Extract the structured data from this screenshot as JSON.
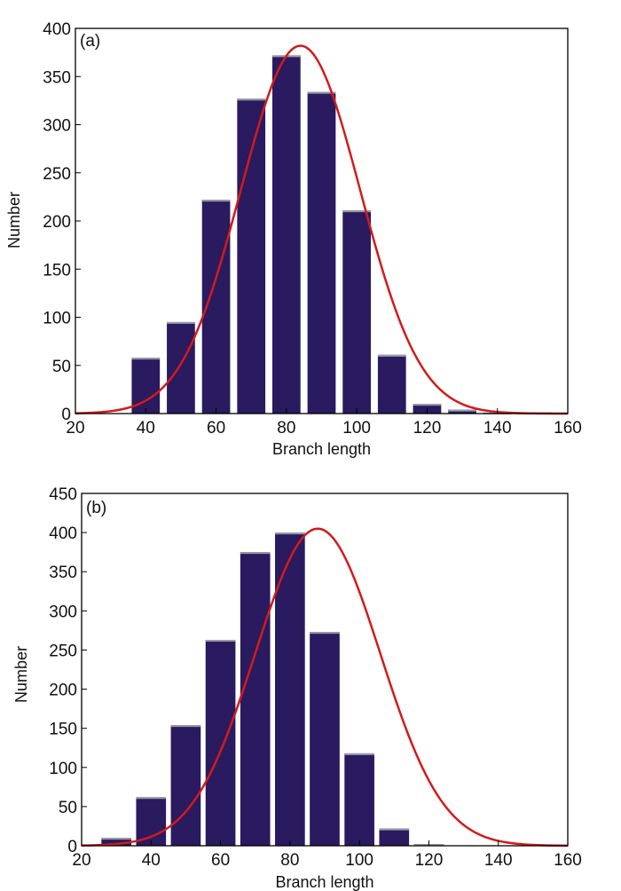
{
  "colors": {
    "bar": "#2a1a60",
    "fit": "#d41a1a",
    "axis": "#000000"
  },
  "chart_data": [
    {
      "type": "bar",
      "panel_label": "(a)",
      "xlabel": "Branch length",
      "ylabel": "Number",
      "xlim": [
        20,
        160
      ],
      "ylim": [
        0,
        400
      ],
      "x_ticks": [
        "20",
        "40",
        "60",
        "80",
        "100",
        "120",
        "140",
        "160"
      ],
      "y_ticks": [
        "0",
        "50",
        "100",
        "150",
        "200",
        "250",
        "300",
        "350",
        "400"
      ],
      "bar_width": 8,
      "x": [
        40,
        50,
        60,
        70,
        80,
        90,
        100,
        110,
        120,
        130,
        140
      ],
      "values": [
        58,
        95,
        222,
        327,
        372,
        334,
        211,
        61,
        10,
        4,
        1
      ],
      "fit_curve": {
        "type": "gaussian",
        "mean": 84,
        "sd": 17,
        "peak": 382
      },
      "grid": false,
      "legend": "none"
    },
    {
      "type": "bar",
      "panel_label": "(b)",
      "xlabel": "Branch length",
      "ylabel": "Number",
      "xlim": [
        20,
        160
      ],
      "ylim": [
        0,
        450
      ],
      "x_ticks": [
        "20",
        "40",
        "60",
        "80",
        "100",
        "120",
        "140",
        "160"
      ],
      "y_ticks": [
        "0",
        "50",
        "100",
        "150",
        "200",
        "250",
        "300",
        "350",
        "400",
        "450"
      ],
      "bar_width": 8.6,
      "x": [
        30,
        40,
        50,
        60,
        70,
        80,
        90,
        100,
        110,
        120,
        130
      ],
      "values": [
        10,
        62,
        154,
        263,
        375,
        400,
        273,
        118,
        22,
        2,
        0
      ],
      "fit_curve": {
        "type": "gaussian",
        "mean": 88,
        "sd": 18,
        "peak": 405
      },
      "grid": false,
      "legend": "none"
    }
  ]
}
